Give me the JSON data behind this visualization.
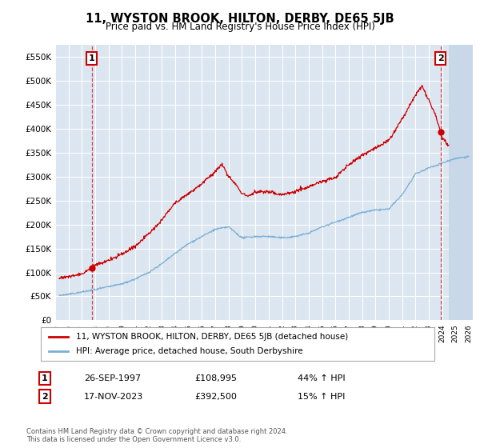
{
  "title": "11, WYSTON BROOK, HILTON, DERBY, DE65 5JB",
  "subtitle": "Price paid vs. HM Land Registry's House Price Index (HPI)",
  "ylim": [
    0,
    575000
  ],
  "yticks": [
    0,
    50000,
    100000,
    150000,
    200000,
    250000,
    300000,
    350000,
    400000,
    450000,
    500000,
    550000
  ],
  "ytick_labels": [
    "£0",
    "£50K",
    "£100K",
    "£150K",
    "£200K",
    "£250K",
    "£300K",
    "£350K",
    "£400K",
    "£450K",
    "£500K",
    "£550K"
  ],
  "xlim_start": 1995.3,
  "xlim_end": 2026.3,
  "background_color": "#dce6f1",
  "grid_color": "#ffffff",
  "sale1_date": 1997.74,
  "sale1_price": 108995,
  "sale1_label": "1",
  "sale2_date": 2023.88,
  "sale2_price": 392500,
  "sale2_label": "2",
  "red_line_color": "#cc0000",
  "blue_line_color": "#7bafd4",
  "legend_line1": "11, WYSTON BROOK, HILTON, DERBY, DE65 5JB (detached house)",
  "legend_line2": "HPI: Average price, detached house, South Derbyshire",
  "annotation1_date": "26-SEP-1997",
  "annotation1_price": "£108,995",
  "annotation1_hpi": "44% ↑ HPI",
  "annotation2_date": "17-NOV-2023",
  "annotation2_price": "£392,500",
  "annotation2_hpi": "15% ↑ HPI",
  "footer": "Contains HM Land Registry data © Crown copyright and database right 2024.\nThis data is licensed under the Open Government Licence v3.0.",
  "future_start": 2024.5,
  "hpi_keypoints_x": [
    1995.3,
    1996,
    1997,
    1998,
    1999,
    2000,
    2001,
    2002,
    2003,
    2004,
    2005,
    2006,
    2007,
    2008,
    2009,
    2010,
    2011,
    2012,
    2013,
    2014,
    2015,
    2016,
    2017,
    2018,
    2019,
    2020,
    2021,
    2022,
    2023,
    2024,
    2024.5,
    2025,
    2026
  ],
  "hpi_keypoints_y": [
    52000,
    54000,
    59000,
    64000,
    70000,
    76000,
    86000,
    100000,
    118000,
    140000,
    160000,
    175000,
    190000,
    195000,
    172000,
    175000,
    175000,
    172000,
    175000,
    182000,
    195000,
    205000,
    215000,
    225000,
    230000,
    232000,
    262000,
    305000,
    318000,
    328000,
    333000,
    338000,
    342000
  ],
  "red_keypoints_x": [
    1995.3,
    1996,
    1997,
    1997.74,
    1998,
    1999,
    2000,
    2001,
    2002,
    2003,
    2004,
    2005,
    2006,
    2007,
    2007.5,
    2008,
    2008.5,
    2009,
    2009.5,
    2010,
    2011,
    2012,
    2013,
    2014,
    2015,
    2016,
    2017,
    2018,
    2019,
    2020,
    2021,
    2022,
    2022.5,
    2023,
    2023.5,
    2023.88,
    2024,
    2024.5
  ],
  "red_keypoints_y": [
    88000,
    91000,
    97000,
    108995,
    115000,
    125000,
    138000,
    155000,
    180000,
    210000,
    245000,
    265000,
    285000,
    310000,
    325000,
    300000,
    285000,
    265000,
    260000,
    268000,
    268000,
    262000,
    270000,
    278000,
    290000,
    298000,
    325000,
    345000,
    360000,
    375000,
    420000,
    470000,
    490000,
    460000,
    430000,
    392500,
    380000,
    365000
  ]
}
